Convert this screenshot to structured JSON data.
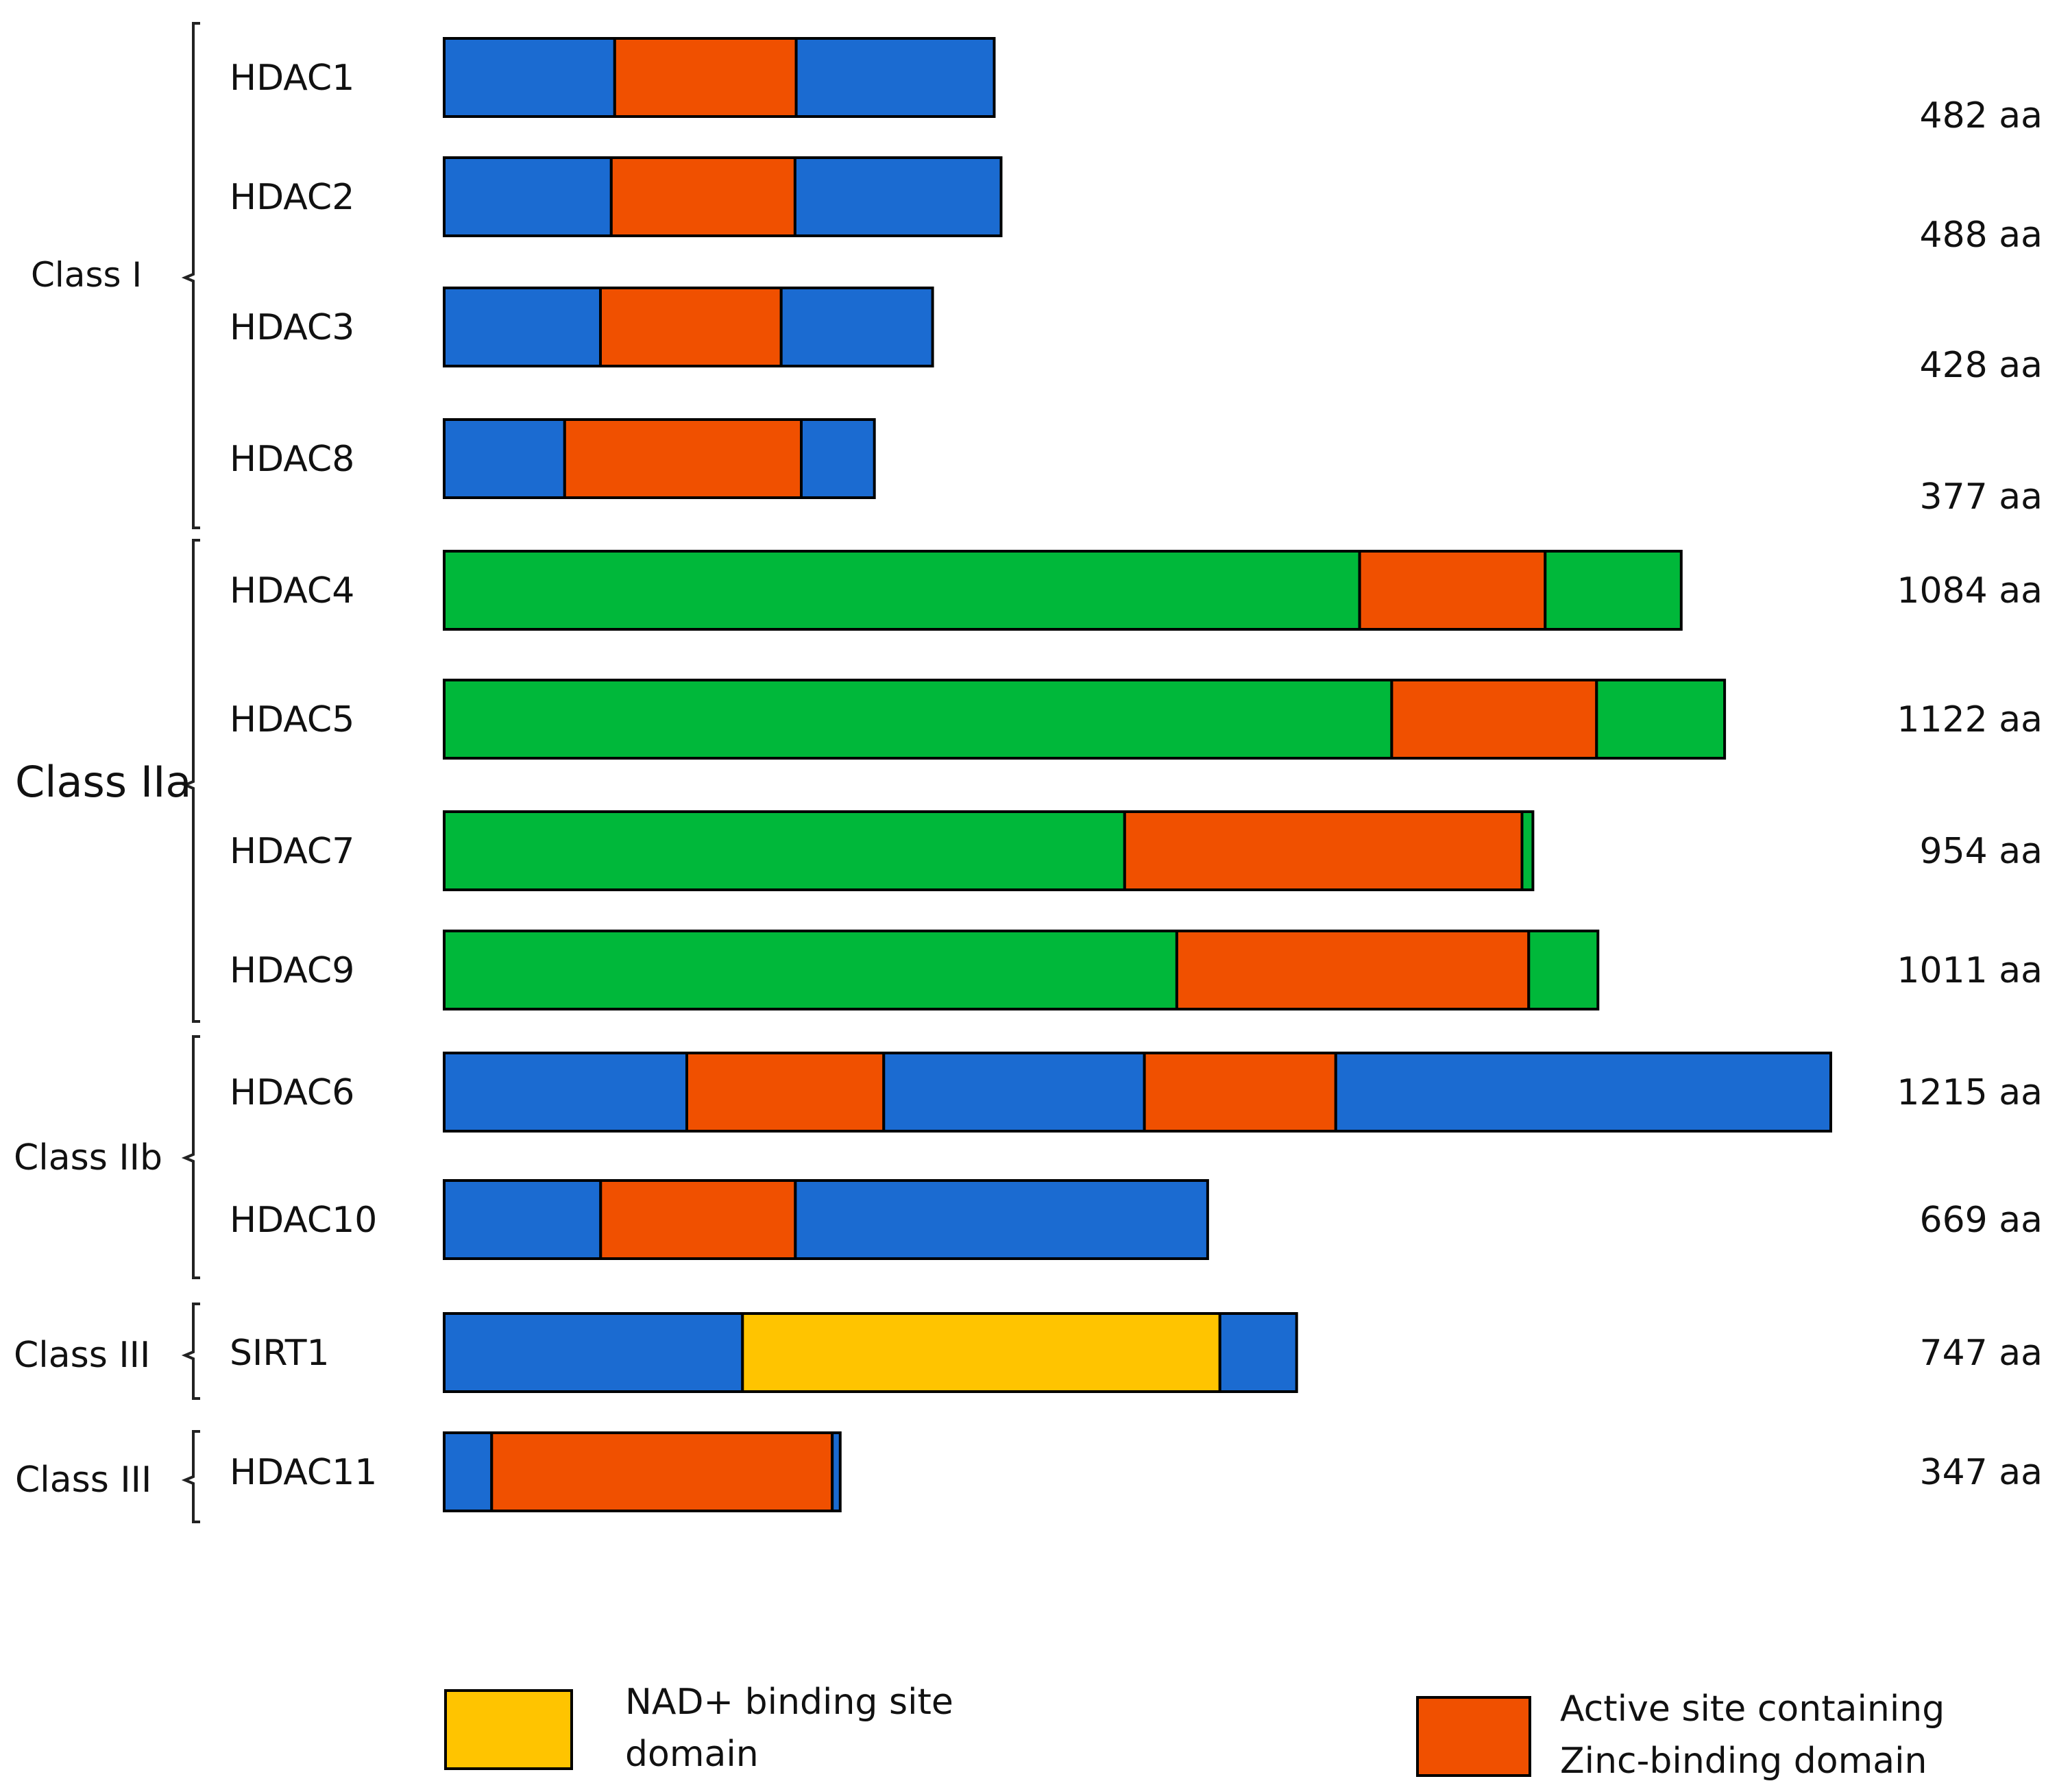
{
  "colors": {
    "other": "#1b6bd1",
    "zinc": "#f05000",
    "classIIa": "#00b83a",
    "nad": "#ffc400"
  },
  "classes": [
    {
      "label": "Class I"
    },
    {
      "label": "Class IIa"
    },
    {
      "label": "Class IIb"
    },
    {
      "label": "Class III"
    },
    {
      "label": "Class III"
    }
  ],
  "proteins": [
    {
      "name": "HDAC1",
      "length_label": "482 aa",
      "segments": [
        [
          "other",
          482,
          0.31
        ],
        [
          "zinc",
          482,
          0.33
        ],
        [
          "other",
          482,
          0.36
        ]
      ]
    },
    {
      "name": "HDAC2",
      "length_label": "488 aa",
      "segments": [
        [
          "other",
          488,
          0.3
        ],
        [
          "zinc",
          488,
          0.33
        ],
        [
          "other",
          488,
          0.37
        ]
      ]
    },
    {
      "name": "HDAC3",
      "length_label": "428 aa",
      "segments": [
        [
          "other",
          428,
          0.32
        ],
        [
          "zinc",
          428,
          0.37
        ],
        [
          "other",
          428,
          0.31
        ]
      ]
    },
    {
      "name": "HDAC8",
      "length_label": "377 aa",
      "segments": [
        [
          "other",
          377,
          0.28
        ],
        [
          "zinc",
          377,
          0.55
        ],
        [
          "other",
          377,
          0.17
        ]
      ]
    },
    {
      "name": "HDAC4",
      "length_label": "1084 aa",
      "segments": [
        [
          "classIIa",
          1084,
          0.74
        ],
        [
          "zinc",
          1084,
          0.15
        ],
        [
          "classIIa",
          1084,
          0.11
        ]
      ]
    },
    {
      "name": "HDAC5",
      "length_label": "1122 aa",
      "segments": [
        [
          "classIIa",
          1122,
          0.74
        ],
        [
          "zinc",
          1122,
          0.16
        ],
        [
          "classIIa",
          1122,
          0.1
        ]
      ]
    },
    {
      "name": "HDAC7",
      "length_label": "954 aa",
      "segments": [
        [
          "classIIa",
          954,
          0.625
        ],
        [
          "zinc",
          954,
          0.365
        ],
        [
          "classIIa",
          954,
          0.01
        ]
      ]
    },
    {
      "name": "HDAC9",
      "length_label": "1011 aa",
      "segments": [
        [
          "classIIa",
          1011,
          0.635
        ],
        [
          "zinc",
          1011,
          0.305
        ],
        [
          "classIIa",
          1011,
          0.06
        ]
      ]
    },
    {
      "name": "HDAC6",
      "length_label": "1215 aa",
      "segments": [
        [
          "other",
          1215,
          0.175
        ],
        [
          "zinc",
          1215,
          0.142
        ],
        [
          "other",
          1215,
          0.188
        ],
        [
          "zinc",
          1215,
          0.138
        ],
        [
          "other",
          1215,
          0.357
        ]
      ]
    },
    {
      "name": "HDAC10",
      "length_label": "669 aa",
      "segments": [
        [
          "other",
          669,
          0.205
        ],
        [
          "zinc",
          669,
          0.255
        ],
        [
          "other",
          669,
          0.54
        ]
      ]
    },
    {
      "name": "SIRT1",
      "length_label": "747 aa",
      "segments": [
        [
          "other",
          747,
          0.35
        ],
        [
          "nad",
          747,
          0.56
        ],
        [
          "other",
          747,
          0.09
        ]
      ]
    },
    {
      "name": "HDAC11",
      "length_label": "347 aa",
      "segments": [
        [
          "other",
          347,
          0.12
        ],
        [
          "zinc",
          347,
          0.86
        ],
        [
          "other",
          347,
          0.02
        ]
      ]
    }
  ],
  "legend": {
    "nad_line1": "NAD+ binding site",
    "nad_line2": "domain",
    "zinc_line1": "Active site containing",
    "zinc_line2": "Zinc-binding domain"
  }
}
